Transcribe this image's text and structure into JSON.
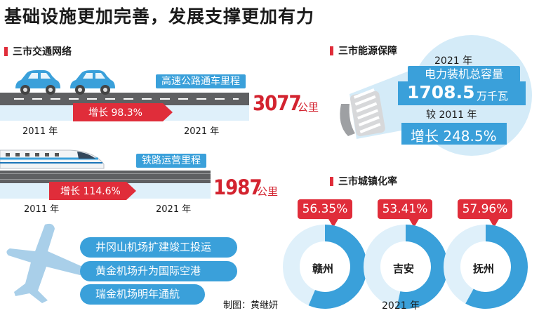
{
  "title": "基础设施更加完善，发展支撑更加有力",
  "traffic": {
    "heading": "三市交通网络",
    "highway": {
      "label": "高速公路通车里程",
      "growth": "增长 98.3%",
      "value": "3077",
      "unit": "公里",
      "year_start": "2011 年",
      "year_end": "2021 年"
    },
    "railway": {
      "label": "铁路运营里程",
      "growth": "增长 114.6%",
      "value": "1987",
      "unit": "公里",
      "year_start": "2011 年",
      "year_end": "2021 年"
    }
  },
  "energy": {
    "heading": "三市能源保障",
    "year": "2021 年",
    "capacity_label": "电力装机总容量",
    "capacity_value": "1708.5",
    "capacity_unit": "万千瓦",
    "compare_label": "较 2011 年",
    "growth": "增长 248.5%"
  },
  "airports": {
    "items": [
      "井冈山机场扩建竣工投运",
      "黄金机场升为国际空港",
      "瑞金机场明年通航"
    ]
  },
  "urbanization": {
    "heading": "三市城镇化率",
    "year": "2021 年",
    "cities": [
      {
        "name": "赣州",
        "rate_text": "56.35%",
        "rate": 56.35
      },
      {
        "name": "吉安",
        "rate_text": "53.41%",
        "rate": 53.41
      },
      {
        "name": "抚州",
        "rate_text": "57.96%",
        "rate": 57.96
      }
    ]
  },
  "credit": "制图：黄继妍",
  "colors": {
    "accent_red": "#e02d3a",
    "accent_blue": "#3aa0da",
    "road_gray": "#5f6062",
    "light_blue": "#dff0fa"
  }
}
